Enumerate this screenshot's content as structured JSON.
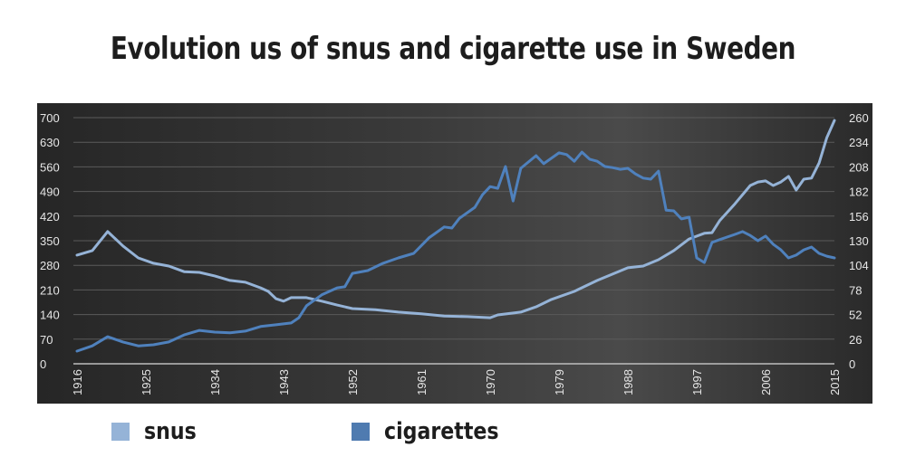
{
  "title": "Evolution us of snus and cigarette use in Sweden",
  "legend": [
    {
      "label": "snus",
      "color": "#95b3d7"
    },
    {
      "label": "cigarettes",
      "color": "#4f7bb0"
    }
  ],
  "colors": {
    "panel_bg": "#333333",
    "grid": "#5a5a5a",
    "axis_text": "#e6e6e6",
    "snus": "#95b3d7",
    "cigarettes": "#4f81bd"
  },
  "chart_data": {
    "type": "line",
    "title": "Evolution us of snus and cigarette use in Sweden",
    "xlabel": "",
    "ylabel": "",
    "y_left": {
      "ticks": [
        0,
        70,
        140,
        210,
        280,
        350,
        420,
        490,
        560,
        630,
        700
      ],
      "range": [
        0,
        700
      ]
    },
    "y_right": {
      "ticks": [
        0,
        26,
        52,
        78,
        104,
        130,
        156,
        182,
        208,
        234,
        260
      ],
      "range": [
        0,
        260
      ]
    },
    "x_ticks": [
      "1916",
      "1925",
      "1934",
      "1943",
      "1952",
      "1961",
      "1970",
      "1979",
      "1988",
      "1997",
      "2006",
      "2015"
    ],
    "x_range": [
      1916,
      2015
    ],
    "grid": true,
    "legend_position": "bottom",
    "series": [
      {
        "name": "snus",
        "color": "#95b3d7",
        "points": [
          [
            1916,
            309
          ],
          [
            1918,
            322
          ],
          [
            1920,
            376
          ],
          [
            1922,
            335
          ],
          [
            1924,
            301
          ],
          [
            1926,
            286
          ],
          [
            1928,
            278
          ],
          [
            1930,
            262
          ],
          [
            1932,
            260
          ],
          [
            1934,
            250
          ],
          [
            1936,
            237
          ],
          [
            1938,
            232
          ],
          [
            1940,
            216
          ],
          [
            1941,
            206
          ],
          [
            1942,
            185
          ],
          [
            1943,
            178
          ],
          [
            1944,
            188
          ],
          [
            1946,
            188
          ],
          [
            1948,
            178
          ],
          [
            1950,
            167
          ],
          [
            1952,
            157
          ],
          [
            1955,
            154
          ],
          [
            1958,
            147
          ],
          [
            1961,
            142
          ],
          [
            1964,
            136
          ],
          [
            1967,
            134
          ],
          [
            1970,
            131
          ],
          [
            1971,
            139
          ],
          [
            1974,
            147
          ],
          [
            1976,
            162
          ],
          [
            1978,
            183
          ],
          [
            1981,
            206
          ],
          [
            1984,
            237
          ],
          [
            1986,
            255
          ],
          [
            1988,
            273
          ],
          [
            1990,
            278
          ],
          [
            1992,
            296
          ],
          [
            1994,
            322
          ],
          [
            1996,
            355
          ],
          [
            1998,
            371
          ],
          [
            1999,
            373
          ],
          [
            2000,
            407
          ],
          [
            2002,
            455
          ],
          [
            2004,
            507
          ],
          [
            2005,
            517
          ],
          [
            2006,
            520
          ],
          [
            2007,
            507
          ],
          [
            2008,
            517
          ],
          [
            2009,
            533
          ],
          [
            2010,
            494
          ],
          [
            2011,
            525
          ],
          [
            2012,
            528
          ],
          [
            2013,
            571
          ],
          [
            2014,
            643
          ],
          [
            2015,
            692
          ]
        ]
      },
      {
        "name": "cigarettes",
        "color": "#4f81bd",
        "points": [
          [
            1916,
            36
          ],
          [
            1918,
            51
          ],
          [
            1920,
            77
          ],
          [
            1922,
            62
          ],
          [
            1924,
            51
          ],
          [
            1926,
            54
          ],
          [
            1928,
            62
          ],
          [
            1930,
            82
          ],
          [
            1932,
            95
          ],
          [
            1934,
            90
          ],
          [
            1936,
            88
          ],
          [
            1938,
            93
          ],
          [
            1940,
            106
          ],
          [
            1942,
            111
          ],
          [
            1944,
            116
          ],
          [
            1945,
            131
          ],
          [
            1946,
            165
          ],
          [
            1948,
            196
          ],
          [
            1950,
            216
          ],
          [
            1951,
            219
          ],
          [
            1952,
            257
          ],
          [
            1954,
            265
          ],
          [
            1956,
            286
          ],
          [
            1958,
            301
          ],
          [
            1960,
            314
          ],
          [
            1962,
            358
          ],
          [
            1964,
            389
          ],
          [
            1965,
            386
          ],
          [
            1966,
            414
          ],
          [
            1968,
            445
          ],
          [
            1969,
            481
          ],
          [
            1970,
            504
          ],
          [
            1971,
            499
          ],
          [
            1972,
            561
          ],
          [
            1973,
            463
          ],
          [
            1974,
            556
          ],
          [
            1976,
            592
          ],
          [
            1977,
            569
          ],
          [
            1979,
            600
          ],
          [
            1980,
            595
          ],
          [
            1981,
            576
          ],
          [
            1982,
            602
          ],
          [
            1983,
            582
          ],
          [
            1984,
            576
          ],
          [
            1985,
            561
          ],
          [
            1986,
            558
          ],
          [
            1987,
            553
          ],
          [
            1988,
            556
          ],
          [
            1989,
            540
          ],
          [
            1990,
            528
          ],
          [
            1991,
            525
          ],
          [
            1992,
            548
          ],
          [
            1993,
            437
          ],
          [
            1994,
            435
          ],
          [
            1995,
            412
          ],
          [
            1996,
            417
          ],
          [
            1997,
            301
          ],
          [
            1998,
            288
          ],
          [
            1999,
            345
          ],
          [
            2000,
            353
          ],
          [
            2002,
            368
          ],
          [
            2003,
            376
          ],
          [
            2004,
            365
          ],
          [
            2005,
            350
          ],
          [
            2006,
            363
          ],
          [
            2007,
            340
          ],
          [
            2008,
            324
          ],
          [
            2009,
            301
          ],
          [
            2010,
            309
          ],
          [
            2011,
            324
          ],
          [
            2012,
            332
          ],
          [
            2013,
            314
          ],
          [
            2014,
            306
          ],
          [
            2015,
            301
          ]
        ]
      }
    ]
  }
}
